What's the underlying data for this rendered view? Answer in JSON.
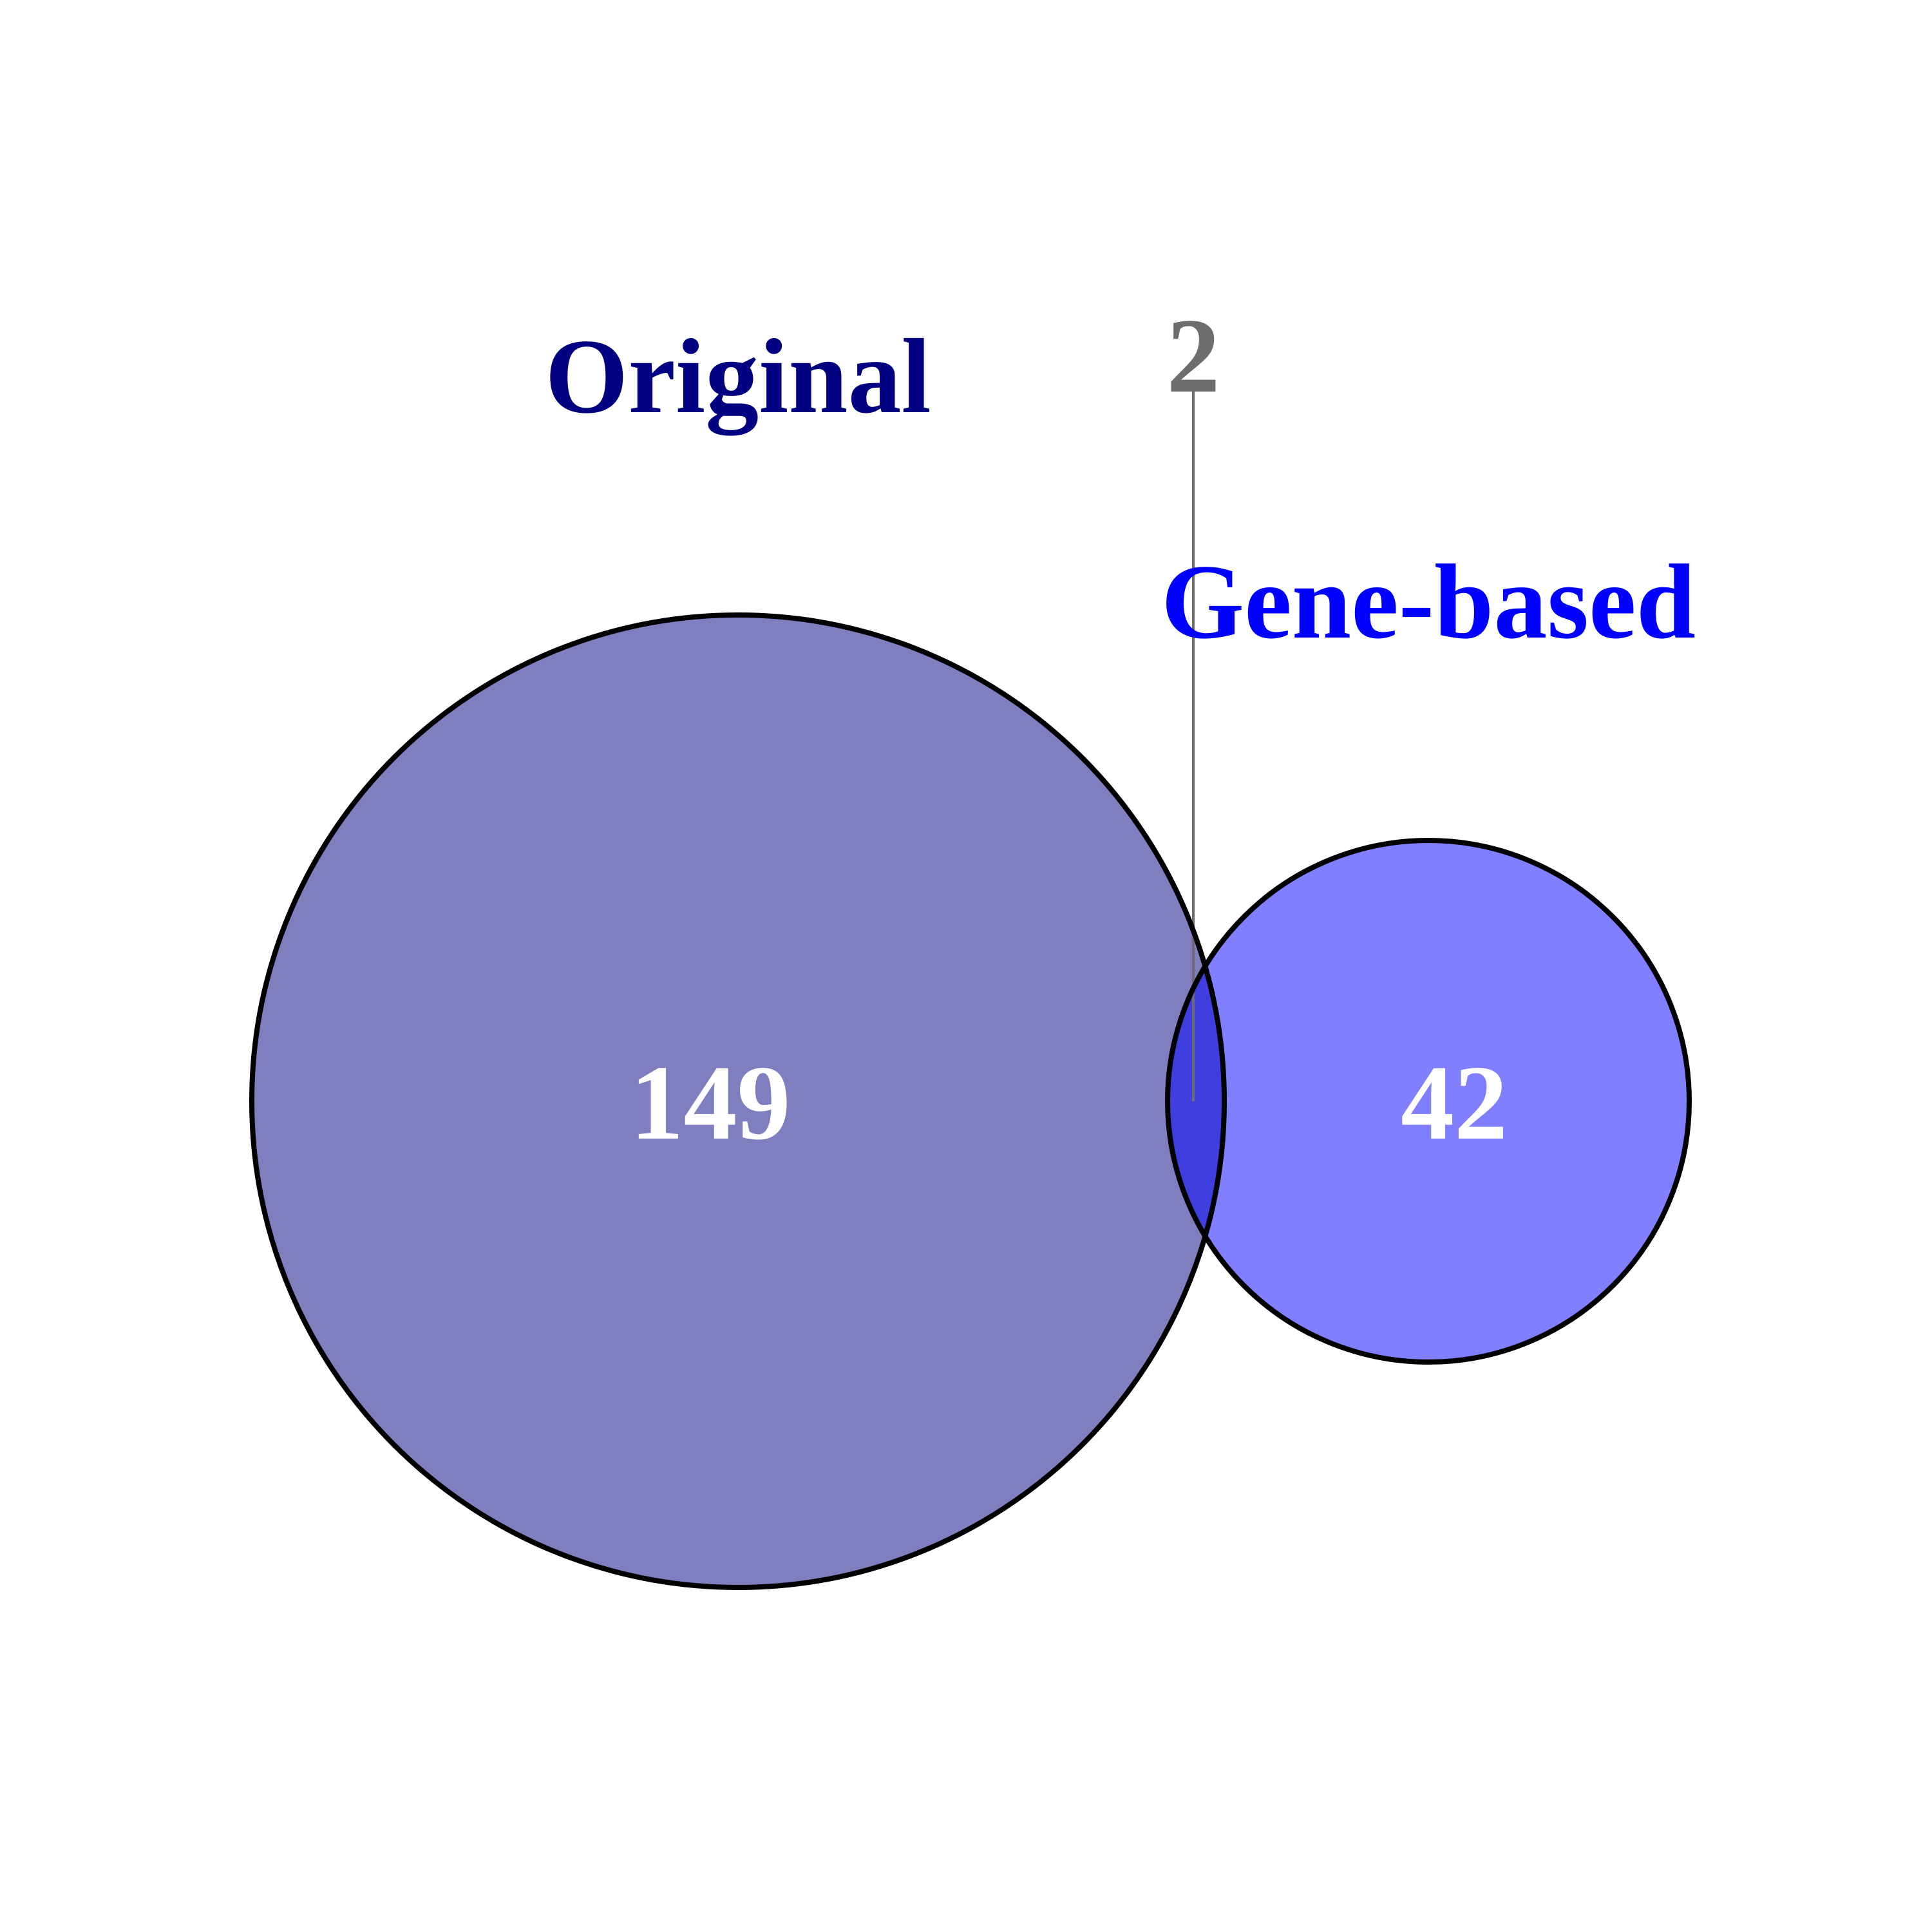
{
  "sets": [
    {
      "name": "Original",
      "unique_count": "149",
      "fill_color": "#000080",
      "label_color": "#000080"
    },
    {
      "name": "Gene-based",
      "unique_count": "42",
      "fill_color": "#0000FF",
      "label_color": "#0000FF"
    }
  ],
  "intersection": {
    "count": "2",
    "label_color": "#6E6E6E"
  },
  "style": {
    "fill_opacity": 0.5,
    "outline_color": "#000000"
  }
}
